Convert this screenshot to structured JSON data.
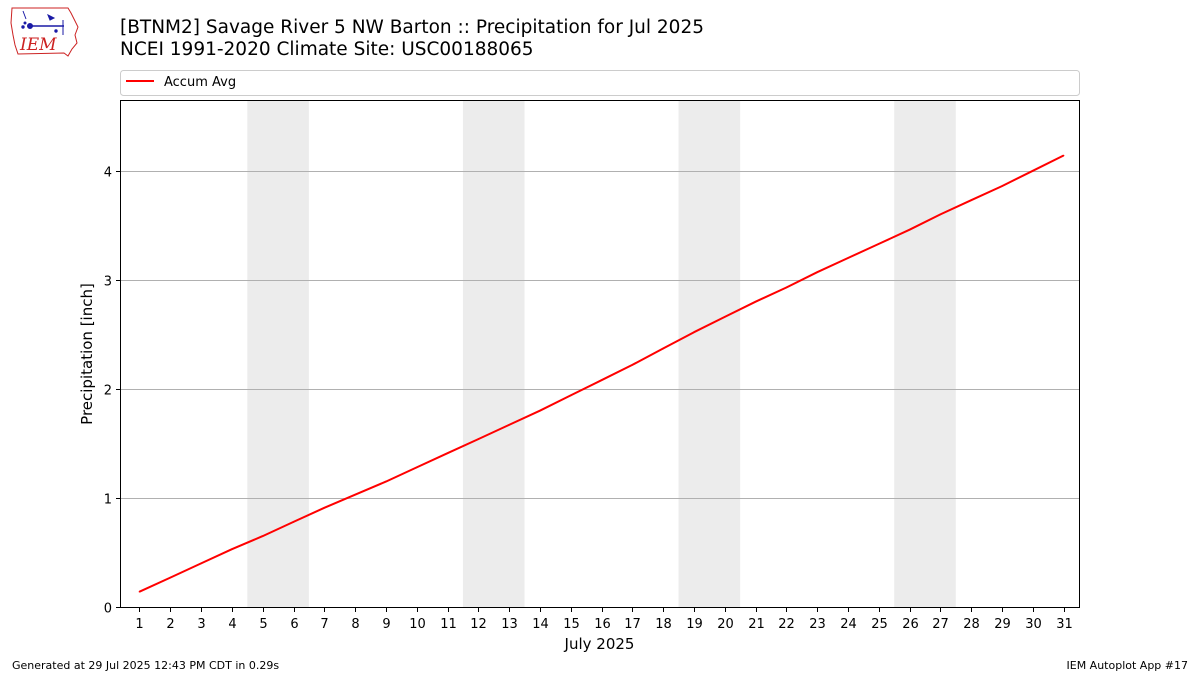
{
  "logo": {
    "text": "IEM",
    "color": "#cc2222",
    "accent": "#1a1aa6"
  },
  "title": {
    "line1": "[BTNM2] Savage River 5 NW Barton :: Precipitation for Jul 2025",
    "line2": "NCEI 1991-2020 Climate Site: USC00188065"
  },
  "footer": {
    "left": "Generated at 29 Jul 2025 12:43 PM CDT in 0.29s",
    "right": "IEM Autoplot App #17"
  },
  "chart_data": {
    "type": "line",
    "xlabel": "July 2025",
    "ylabel": "Precipitation [inch]",
    "xlim": [
      0.4,
      31.5
    ],
    "ylim": [
      0,
      4.64
    ],
    "yticks": [
      0,
      1,
      2,
      3,
      4
    ],
    "x": [
      1,
      2,
      3,
      4,
      5,
      6,
      7,
      8,
      9,
      10,
      11,
      12,
      13,
      14,
      15,
      16,
      17,
      18,
      19,
      20,
      21,
      22,
      23,
      24,
      25,
      26,
      27,
      28,
      29,
      30,
      31
    ],
    "series": [
      {
        "name": "Accum Avg",
        "color": "#ff0000",
        "values": [
          0.14,
          0.27,
          0.4,
          0.53,
          0.65,
          0.78,
          0.91,
          1.03,
          1.15,
          1.28,
          1.41,
          1.54,
          1.67,
          1.8,
          1.94,
          2.08,
          2.22,
          2.37,
          2.52,
          2.66,
          2.8,
          2.93,
          3.07,
          3.2,
          3.33,
          3.46,
          3.6,
          3.73,
          3.86,
          4.0,
          4.14
        ]
      }
    ],
    "weekend_bands": [
      [
        4.5,
        6.5
      ],
      [
        11.5,
        13.5
      ],
      [
        18.5,
        20.5
      ],
      [
        25.5,
        27.5
      ]
    ],
    "band_color": "#ececec",
    "grid": "horizontal",
    "gridColor": "#b0b0b0",
    "legend": "top"
  }
}
